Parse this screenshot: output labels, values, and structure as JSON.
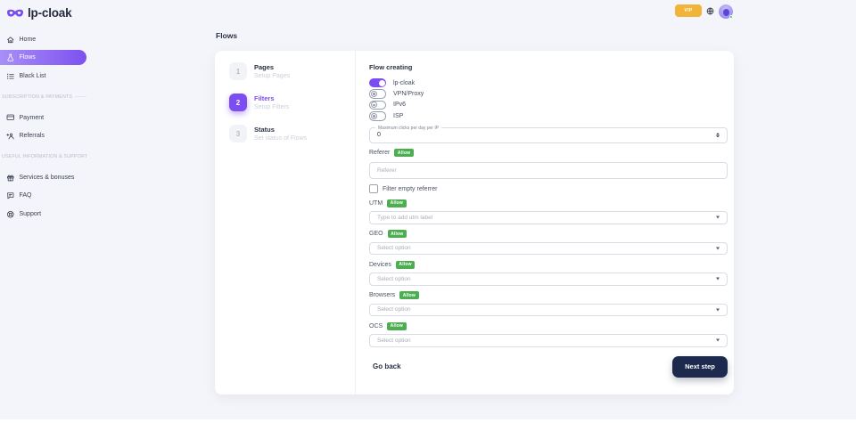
{
  "header": {
    "logo_text": "lp-cloak",
    "vip_label": "VIP"
  },
  "sidebar": {
    "items": [
      {
        "label": "Home",
        "icon": "home-icon",
        "active": false
      },
      {
        "label": "Flows",
        "icon": "flows-icon",
        "active": true
      },
      {
        "label": "Black List",
        "icon": "blacklist-icon",
        "active": false
      }
    ],
    "sections": [
      {
        "title": "SUBSCRIPTION & PAYMENTS",
        "items": [
          {
            "label": "Payment",
            "icon": "payment-icon",
            "active": false
          },
          {
            "label": "Referrals",
            "icon": "referrals-icon",
            "active": false
          }
        ]
      },
      {
        "title": "USEFUL INFORMATION & SUPPORT",
        "items": [
          {
            "label": "Services & bonuses",
            "icon": "services-icon",
            "active": false
          },
          {
            "label": "FAQ",
            "icon": "faq-icon",
            "active": false
          },
          {
            "label": "Support",
            "icon": "support-icon",
            "active": false
          }
        ]
      }
    ]
  },
  "main": {
    "title": "Flows",
    "stepper": [
      {
        "num": "1",
        "label": "Pages",
        "sub": "Setup Pages",
        "active": false
      },
      {
        "num": "2",
        "label": "Filters",
        "sub": "Setup Filters",
        "active": true
      },
      {
        "num": "3",
        "label": "Status",
        "sub": "Set status of Flows",
        "active": false
      }
    ],
    "form": {
      "title": "Flow creating",
      "toggles": [
        {
          "label": "lp-cloak",
          "on": true
        },
        {
          "label": "VPN/Proxy",
          "on": false
        },
        {
          "label": "IPv6",
          "on": false
        },
        {
          "label": "ISP",
          "on": false
        }
      ],
      "max_clicks": {
        "label": "Maximum clicks per day per IP",
        "value": "0"
      },
      "referer": {
        "label": "Referer",
        "badge": "Allow",
        "placeholder": "Referer"
      },
      "filter_empty": {
        "label": "Filter empty referrer",
        "checked": false
      },
      "groups": [
        {
          "label": "UTM",
          "badge": "Allow",
          "placeholder": "Type to add utm label"
        },
        {
          "label": "GEO",
          "badge": "Allow",
          "placeholder": "Select option"
        },
        {
          "label": "Devices",
          "badge": "Allow",
          "placeholder": "Select option"
        },
        {
          "label": "Browsers",
          "badge": "Allow",
          "placeholder": "Select option"
        },
        {
          "label": "OCS",
          "badge": "Allow",
          "placeholder": "Select option"
        }
      ],
      "go_back": "Go back",
      "next_step": "Next step"
    }
  },
  "colors": {
    "accent": "#7c4df0",
    "badge_green": "#4cae50",
    "vip_yellow": "#f2b438",
    "next_button": "#1d2a4d",
    "background": "#f4f5fa"
  }
}
